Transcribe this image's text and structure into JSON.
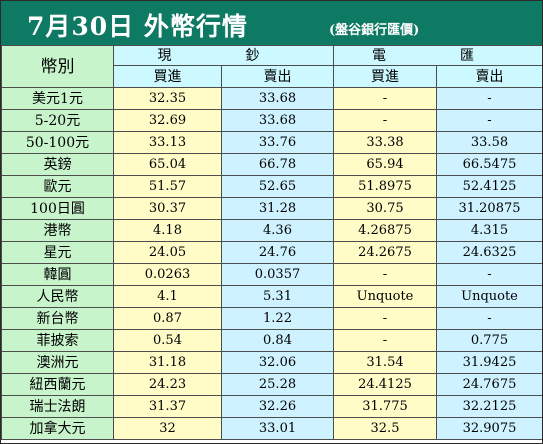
{
  "header": {
    "title": "7月30日 外幣行情",
    "subtitle": "(盤谷銀行匯價)"
  },
  "table": {
    "category_header": "幣別",
    "groups": [
      "現　鈔",
      "電　匯"
    ],
    "subheaders": [
      "買進",
      "賣出",
      "買進",
      "賣出"
    ],
    "rows": [
      {
        "currency": "美元1元",
        "cash_buy": "32.35",
        "cash_sell": "33.68",
        "tt_buy": "-",
        "tt_sell": "-"
      },
      {
        "currency": "5-20元",
        "cash_buy": "32.69",
        "cash_sell": "33.68",
        "tt_buy": "-",
        "tt_sell": "-"
      },
      {
        "currency": "50-100元",
        "cash_buy": "33.13",
        "cash_sell": "33.76",
        "tt_buy": "33.38",
        "tt_sell": "33.58"
      },
      {
        "currency": "英鎊",
        "cash_buy": "65.04",
        "cash_sell": "66.78",
        "tt_buy": "65.94",
        "tt_sell": "66.5475"
      },
      {
        "currency": "歐元",
        "cash_buy": "51.57",
        "cash_sell": "52.65",
        "tt_buy": "51.8975",
        "tt_sell": "52.4125"
      },
      {
        "currency": "100日圓",
        "cash_buy": "30.37",
        "cash_sell": "31.28",
        "tt_buy": "30.75",
        "tt_sell": "31.20875"
      },
      {
        "currency": "港幣",
        "cash_buy": "4.18",
        "cash_sell": "4.36",
        "tt_buy": "4.26875",
        "tt_sell": "4.315"
      },
      {
        "currency": "星元",
        "cash_buy": "24.05",
        "cash_sell": "24.76",
        "tt_buy": "24.2675",
        "tt_sell": "24.6325"
      },
      {
        "currency": "韓圓",
        "cash_buy": "0.0263",
        "cash_sell": "0.0357",
        "tt_buy": "-",
        "tt_sell": "-"
      },
      {
        "currency": "人民幣",
        "cash_buy": "4.1",
        "cash_sell": "5.31",
        "tt_buy": "Unquote",
        "tt_sell": "Unquote"
      },
      {
        "currency": "新台幣",
        "cash_buy": "0.87",
        "cash_sell": "1.22",
        "tt_buy": "-",
        "tt_sell": "-"
      },
      {
        "currency": "菲披索",
        "cash_buy": "0.54",
        "cash_sell": "0.84",
        "tt_buy": "-",
        "tt_sell": "0.775"
      },
      {
        "currency": "澳洲元",
        "cash_buy": "31.18",
        "cash_sell": "32.06",
        "tt_buy": "31.54",
        "tt_sell": "31.9425"
      },
      {
        "currency": "紐西蘭元",
        "cash_buy": "24.23",
        "cash_sell": "25.28",
        "tt_buy": "24.4125",
        "tt_sell": "24.7675"
      },
      {
        "currency": "瑞士法朗",
        "cash_buy": "31.37",
        "cash_sell": "32.26",
        "tt_buy": "31.775",
        "tt_sell": "32.2125"
      },
      {
        "currency": "加拿大元",
        "cash_buy": "32",
        "cash_sell": "33.01",
        "tt_buy": "32.5",
        "tt_sell": "32.9075"
      }
    ]
  },
  "colors": {
    "banner": "#0e7a63",
    "currency_cells": "#c8f4cc",
    "header_cells": "#ccf8ff",
    "buy_cells": "#fffcc8",
    "sell_cells": "#cef2ff"
  }
}
